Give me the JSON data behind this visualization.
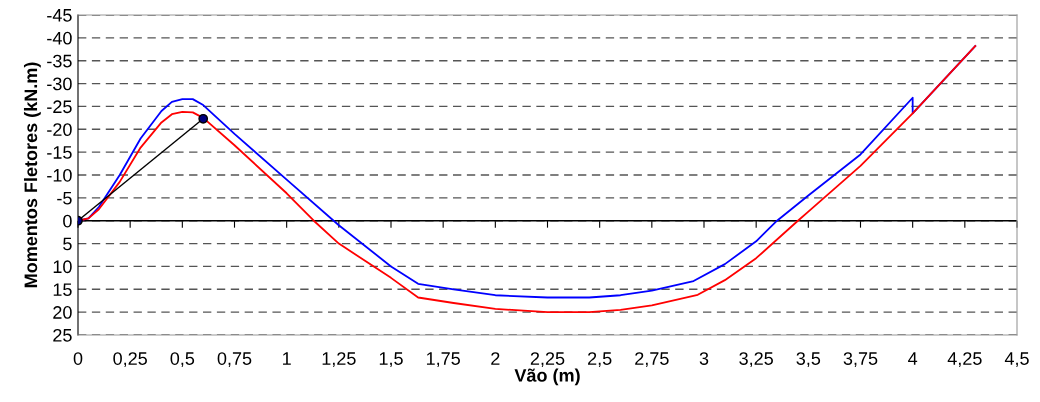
{
  "chart_data": {
    "type": "line",
    "xlabel": "Vão (m)",
    "ylabel": "Momentos Fletores (kN.m)",
    "xlim": [
      0,
      4.5
    ],
    "xticks": [
      0,
      {
        "value": 0.25,
        "label": "0,25"
      },
      {
        "value": 0.5,
        "label": "0,5"
      },
      {
        "value": 0.75,
        "label": "0,75"
      },
      1,
      {
        "value": 1.25,
        "label": "1,25"
      },
      {
        "value": 1.5,
        "label": "1,5"
      },
      {
        "value": 1.75,
        "label": "1,75"
      },
      2,
      {
        "value": 2.25,
        "label": "2,25"
      },
      {
        "value": 2.5,
        "label": "2,5"
      },
      {
        "value": 2.75,
        "label": "2,75"
      },
      3,
      {
        "value": 3.25,
        "label": "3,25"
      },
      {
        "value": 3.5,
        "label": "3,5"
      },
      {
        "value": 3.75,
        "label": "3,75"
      },
      4,
      {
        "value": 4.25,
        "label": "4,25"
      },
      {
        "value": 4.5,
        "label": "4,5"
      }
    ],
    "ylim": [
      25,
      -45
    ],
    "yticks": [
      {
        "value": -45,
        "label": "-45"
      },
      {
        "value": -40,
        "label": "-40"
      },
      {
        "value": -35,
        "label": "-35"
      },
      {
        "value": -30,
        "label": "-30"
      },
      {
        "value": -25,
        "label": "-25"
      },
      {
        "value": -20,
        "label": "-20"
      },
      {
        "value": -15,
        "label": "-15"
      },
      {
        "value": -10,
        "label": "-10"
      },
      {
        "value": -5,
        "label": "-5"
      },
      0,
      5,
      10,
      15,
      20,
      25
    ],
    "ref_lines": [
      {
        "axis": "y",
        "value": 0,
        "color": "#000000"
      }
    ],
    "grid": "y",
    "legend": false,
    "line_style": "solid",
    "marker": "none",
    "series": [
      {
        "color": "#0000ff",
        "x": [
          0,
          0.05,
          0.1,
          0.2,
          0.3,
          0.4,
          0.45,
          0.5,
          0.55,
          0.6,
          0.75,
          1,
          1.25,
          1.5,
          1.63,
          1.8,
          2,
          2.25,
          2.45,
          2.6,
          2.75,
          2.95,
          3.1,
          3.25,
          3.35,
          3.5,
          3.75,
          4,
          4,
          4.3
        ],
        "values": [
          0,
          -0.5,
          -3,
          -10,
          -18,
          -24,
          -26,
          -26.6,
          -26.6,
          -25.3,
          -19,
          -9,
          1,
          10,
          13.8,
          15,
          16.3,
          16.8,
          16.8,
          16.3,
          15.3,
          13.2,
          9.5,
          4.5,
          0,
          -5.5,
          -14.5,
          -26.9,
          -23.5,
          -38.2
        ]
      },
      {
        "color": "#ff0000",
        "x": [
          0,
          0.05,
          0.1,
          0.2,
          0.3,
          0.4,
          0.45,
          0.5,
          0.55,
          0.6,
          0.75,
          1,
          1.13,
          1.25,
          1.5,
          1.63,
          1.8,
          2,
          2.25,
          2.45,
          2.6,
          2.75,
          2.97,
          3.1,
          3.25,
          3.45,
          3.5,
          3.75,
          4,
          4.3
        ],
        "values": [
          0,
          -0.5,
          -2.5,
          -8.5,
          -16,
          -21.5,
          -23.3,
          -23.8,
          -23.7,
          -22.5,
          -16.5,
          -6,
          0,
          5,
          12.5,
          16.8,
          18,
          19.3,
          20,
          20,
          19.5,
          18.5,
          16.2,
          13,
          8.2,
          0,
          -2,
          -12,
          -23.5,
          -38.2
        ]
      },
      {
        "color": "#000000",
        "marker": "circle",
        "x": [
          0,
          0.6
        ],
        "values": [
          0,
          -22.3
        ]
      }
    ]
  }
}
